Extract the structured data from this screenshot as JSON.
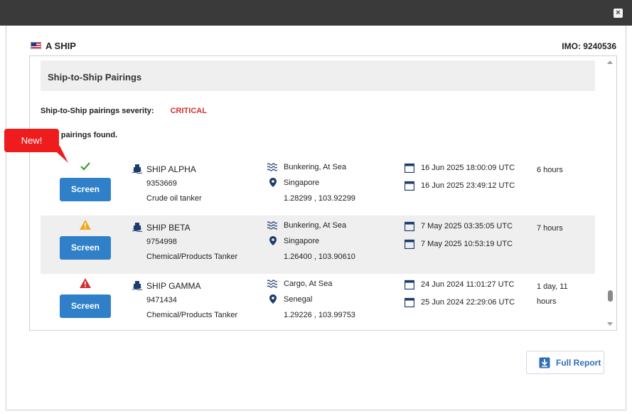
{
  "window": {
    "close_label": "×"
  },
  "header": {
    "ship_name": "A SHIP",
    "imo": "IMO: 9240536"
  },
  "section": {
    "title": "Ship-to-Ship Pairings"
  },
  "severity": {
    "label": "Ship-to-Ship pairings severity:",
    "value": "CRITICAL"
  },
  "pairings_found": "of 15 pairings found.",
  "new_badge": "New!",
  "colors": {
    "accent": "#2f80c8",
    "critical": "#d32f2f",
    "warning": "#f0a81e",
    "ok": "#3aa03a",
    "badge": "#ee1c1c"
  },
  "rows": [
    {
      "status_icon": "check-icon",
      "button": "Screen",
      "name": "SHIP ALPHA",
      "imo": "9353669",
      "type": "Crude oil tanker",
      "activity": "Bunkering, At Sea",
      "location": "Singapore",
      "coords": "1.28299 , 103.92299",
      "start": "16 Jun 2025 18:00:09 UTC",
      "end": "16 Jun 2025 23:49:12 UTC",
      "duration": "6 hours"
    },
    {
      "status_icon": "warning-icon",
      "button": "Screen",
      "name": "SHIP BETA",
      "imo": "9754998",
      "type": "Chemical/Products Tanker",
      "activity": "Bunkering, At Sea",
      "location": "Singapore",
      "coords": "1.26400 , 103.90610",
      "start": "7 May 2025 03:35:05 UTC",
      "end": "7 May 2025 10:53:19 UTC",
      "duration": "7 hours"
    },
    {
      "status_icon": "alert-icon",
      "button": "Screen",
      "name": "SHIP GAMMA",
      "imo": "9471434",
      "type": "Chemical/Products Tanker",
      "activity": "Cargo, At Sea",
      "location": "Senegal",
      "coords": "1.29226 , 103.99753",
      "start": "24 Jun 2024 11:01:27 UTC",
      "end": "25 Jun 2024 22:29:06 UTC",
      "duration": "1 day, 11 hours"
    }
  ],
  "report_button": "Full Report"
}
